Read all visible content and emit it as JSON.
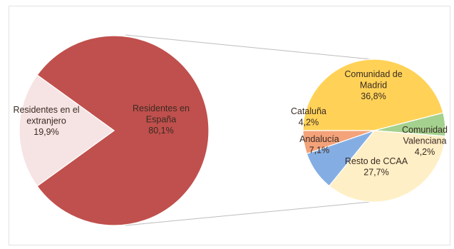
{
  "chart_data": [
    {
      "type": "pie",
      "series": [
        {
          "labels": [
            "Residentes en España",
            "Residentes en el extranjero"
          ],
          "values": [
            80.1,
            19.9
          ],
          "value_labels": [
            "80,1%",
            "19,9%"
          ],
          "colors": [
            "#c0504d",
            "#f6e4e4"
          ]
        }
      ],
      "slice_label_lines": [
        [
          "Residentes en",
          "España",
          "80,1%"
        ],
        [
          "Residentes en el",
          "extranjero",
          "19,9%"
        ]
      ]
    },
    {
      "type": "pie",
      "series": [
        {
          "labels": [
            "Comunidad de Madrid",
            "Comunidad Valenciana",
            "Resto de CCAA",
            "Andalucía",
            "Cataluña"
          ],
          "values": [
            36.8,
            4.2,
            27.7,
            7.1,
            4.2
          ],
          "value_labels": [
            "36,8%",
            "4,2%",
            "27,7%",
            "7,1%",
            "4,2%"
          ],
          "colors": [
            "#ffd257",
            "#a4d18e",
            "#ffefc6",
            "#84aee3",
            "#f3a27a"
          ]
        }
      ],
      "slice_label_lines": [
        [
          "Comunidad de",
          "Madrid",
          "36,8%"
        ],
        [
          "Comunidad",
          "Valenciana",
          "4,2%"
        ],
        [
          "Resto de CCAA",
          "27,7%"
        ],
        [
          "Andalucía",
          "7,1%"
        ],
        [
          "Cataluña",
          "4,2%"
        ]
      ]
    }
  ]
}
